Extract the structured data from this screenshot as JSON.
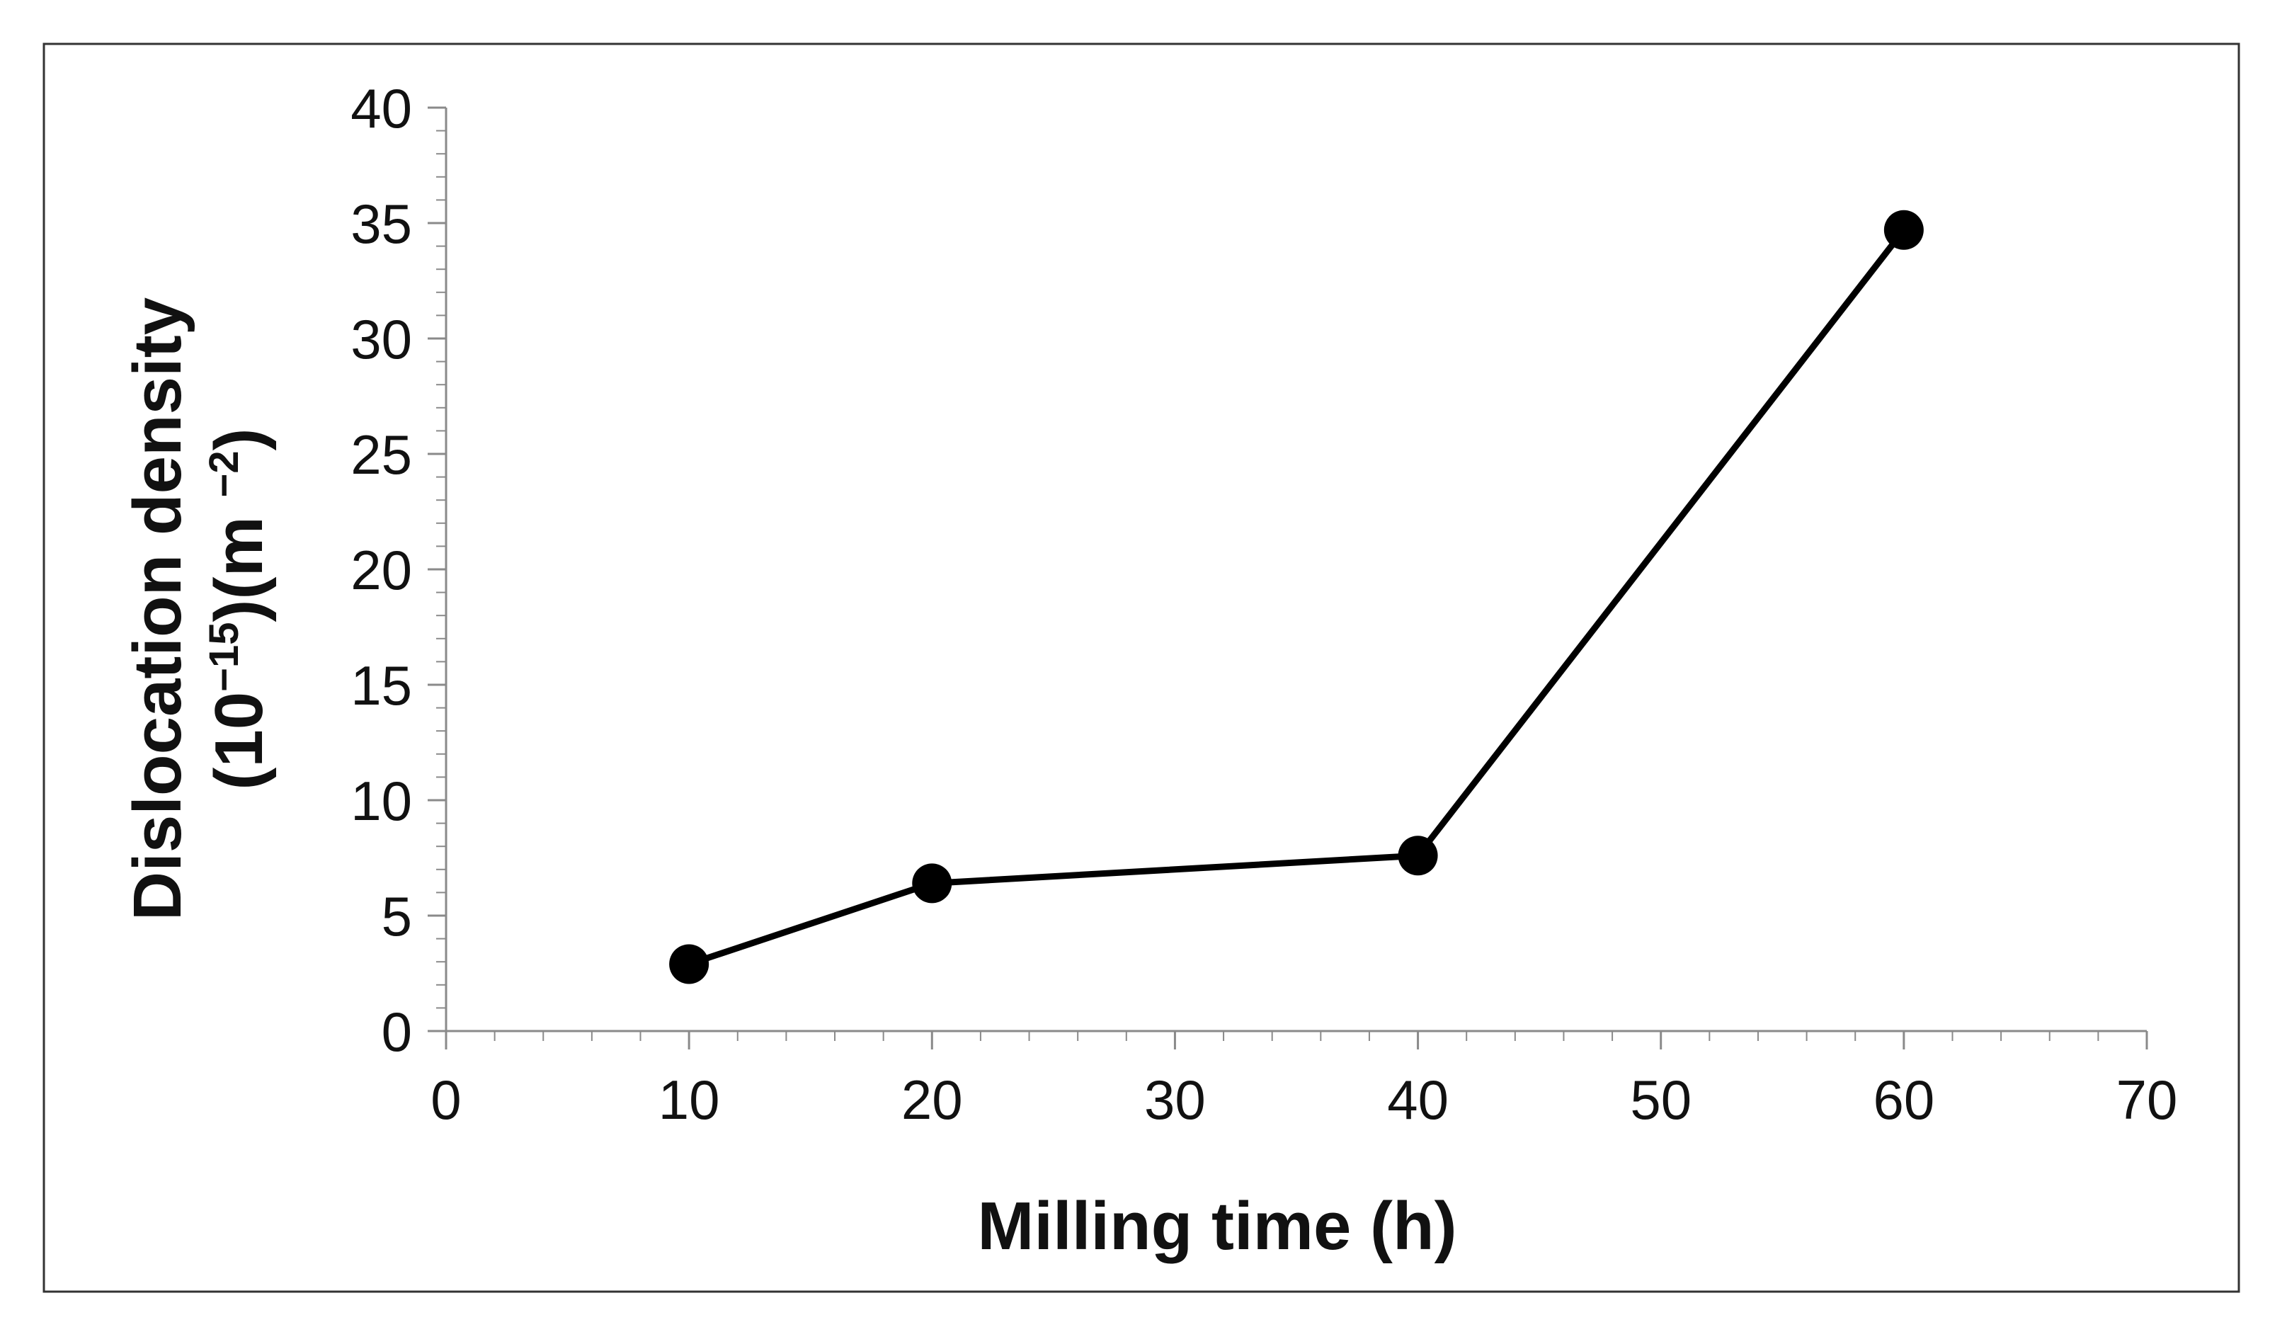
{
  "chart_data": {
    "type": "line",
    "title": "",
    "xlabel": "Milling time (h)",
    "ylabel": {
      "line1": "Dislocation density",
      "line2_prefix": "(10",
      "line2_exp1": "−15",
      "line2_mid": ")(m ",
      "line2_exp2": "−2",
      "line2_suffix": ")"
    },
    "xlim": [
      0,
      70
    ],
    "ylim": [
      0,
      40
    ],
    "x_ticks": [
      "0",
      "10",
      "20",
      "30",
      "40",
      "50",
      "60",
      "70"
    ],
    "y_ticks": [
      "0",
      "5",
      "10",
      "15",
      "20",
      "25",
      "30",
      "35",
      "40"
    ],
    "x_minor_step": 2,
    "y_minor_step": 1,
    "grid": false,
    "legend": "none",
    "series": [
      {
        "x": [
          10,
          20,
          40,
          60
        ],
        "y": [
          2.9,
          6.4,
          7.6,
          34.7
        ],
        "color": "#000000",
        "marker": "circle"
      }
    ]
  }
}
